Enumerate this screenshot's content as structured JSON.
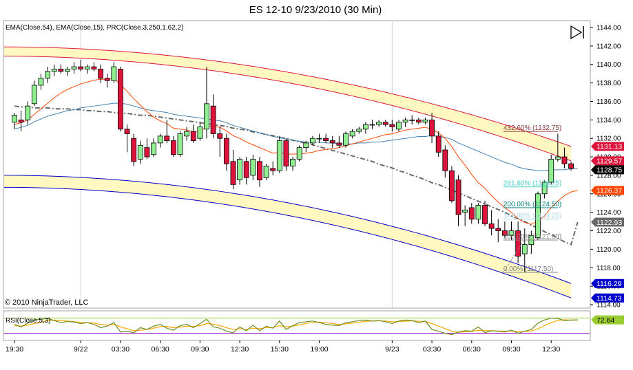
{
  "title": "ES 12-10  9/23/2010 (30 Min)",
  "indicator_label": "EMA(Close,54), EMA(Close,15), PRC(Close,3,250,1.62,2)",
  "rsi_label": "RSI(Close,5,3)",
  "copyright": "© 2010 NinjaTrader, LLC",
  "icon": "play-to-end-icon",
  "colors": {
    "up_candle": "#90ee90",
    "down_candle": "#dc143c",
    "ema54": "#4682b4",
    "ema15": "#ff4500",
    "regression": "#696969",
    "upper_channel": "#dc143c",
    "lower_channel": "#0000cd",
    "band_fill": "#fff8c0",
    "rsi": "#6b8e23",
    "rsi_signal": "#ffa500",
    "rsi_upper": "#9acd32",
    "rsi_lower": "#9400d3"
  },
  "price_axis": {
    "min": 1114,
    "max": 1144,
    "ticks": [
      "1144.00",
      "1142.00",
      "1140.00",
      "1138.00",
      "1136.00",
      "1134.00",
      "1132.00",
      "1130.00",
      "1128.00",
      "1126.00",
      "1124.00",
      "1122.00",
      "1120.00",
      "1118.00",
      "1116.00",
      "1114.00"
    ]
  },
  "price_markers": [
    {
      "label": "1131.13",
      "value": 1131.13,
      "color": "#dc143c",
      "text_color": "#ffffff"
    },
    {
      "label": "1129.57",
      "value": 1129.57,
      "color": "#dc143c",
      "text_color": "#ffffff"
    },
    {
      "label": "1128.75",
      "value": 1128.75,
      "color": "#000000",
      "text_color": "#ffffff"
    },
    {
      "label": "1126.37",
      "value": 1126.37,
      "color": "#ff4500",
      "text_color": "#ffffff"
    },
    {
      "label": "1122.93",
      "value": 1122.93,
      "color": "#696969",
      "text_color": "#ffffff"
    },
    {
      "label": "1116.29",
      "value": 1116.29,
      "color": "#0000cd",
      "text_color": "#ffffff"
    },
    {
      "label": "1114.73",
      "value": 1114.73,
      "color": "#0000cd",
      "text_color": "#ffffff"
    }
  ],
  "rsi_marker": {
    "label": "72.64",
    "value": 72.64,
    "color": "#9acd32",
    "text_color": "#000000"
  },
  "time_axis": [
    {
      "label": "19:30",
      "bar": 0
    },
    {
      "label": "9/22",
      "bar": 10
    },
    {
      "label": "03:30",
      "bar": 16
    },
    {
      "label": "06:30",
      "bar": 22
    },
    {
      "label": "09:30",
      "bar": 28
    },
    {
      "label": "12:30",
      "bar": 34
    },
    {
      "label": "15:30",
      "bar": 40
    },
    {
      "label": "19:00",
      "bar": 46
    },
    {
      "label": "9/23",
      "bar": 57
    },
    {
      "label": "03:30",
      "bar": 63
    },
    {
      "label": "06:30",
      "bar": 69
    },
    {
      "label": "09:30",
      "bar": 75
    },
    {
      "label": "12:30",
      "bar": 81
    }
  ],
  "fib_levels": [
    {
      "label": "432.60% (1132.75)",
      "value": 1132.75,
      "color": "#8b3a3a"
    },
    {
      "label": "261.80% (1126.75)",
      "value": 1126.75,
      "color": "#48d1cc"
    },
    {
      "label": "200.00% (1124.50)",
      "value": 1124.5,
      "color": "#008080"
    },
    {
      "label": "161.80% (1123.25)",
      "value": 1123.25,
      "color": "#add8e6"
    },
    {
      "label": "100.00% (1121.00)",
      "value": 1121.0,
      "color": "#808080"
    },
    {
      "label": "0.00% (1117.50)",
      "value": 1117.5,
      "color": "#808080"
    }
  ],
  "chart_data": {
    "type": "candlestick",
    "title": "ES 12-10  9/23/2010 (30 Min)",
    "ylim": [
      1114,
      1144
    ],
    "rsi_ylim": [
      0,
      100
    ],
    "rsi_levels": [
      80,
      20
    ],
    "candles": [
      {
        "o": 1133.75,
        "h": 1134.75,
        "l": 1133.0,
        "c": 1134.5
      },
      {
        "o": 1134.0,
        "h": 1135.0,
        "l": 1132.75,
        "c": 1133.75
      },
      {
        "o": 1134.0,
        "h": 1136.0,
        "l": 1133.5,
        "c": 1135.5
      },
      {
        "o": 1135.75,
        "h": 1138.25,
        "l": 1135.5,
        "c": 1137.75
      },
      {
        "o": 1137.75,
        "h": 1139.0,
        "l": 1137.25,
        "c": 1138.5
      },
      {
        "o": 1138.5,
        "h": 1139.75,
        "l": 1138.0,
        "c": 1139.25
      },
      {
        "o": 1139.25,
        "h": 1140.0,
        "l": 1138.75,
        "c": 1139.5
      },
      {
        "o": 1139.5,
        "h": 1140.0,
        "l": 1139.0,
        "c": 1139.25
      },
      {
        "o": 1139.25,
        "h": 1139.75,
        "l": 1138.75,
        "c": 1139.5
      },
      {
        "o": 1139.5,
        "h": 1140.25,
        "l": 1139.0,
        "c": 1139.75
      },
      {
        "o": 1139.75,
        "h": 1140.5,
        "l": 1139.25,
        "c": 1139.5
      },
      {
        "o": 1139.5,
        "h": 1140.0,
        "l": 1139.0,
        "c": 1139.75
      },
      {
        "o": 1139.75,
        "h": 1140.25,
        "l": 1139.25,
        "c": 1139.5
      },
      {
        "o": 1139.5,
        "h": 1140.0,
        "l": 1138.0,
        "c": 1138.5
      },
      {
        "o": 1138.5,
        "h": 1139.0,
        "l": 1137.5,
        "c": 1138.25
      },
      {
        "o": 1138.25,
        "h": 1140.25,
        "l": 1138.0,
        "c": 1139.75
      },
      {
        "o": 1139.5,
        "h": 1139.75,
        "l": 1132.75,
        "c": 1133.0
      },
      {
        "o": 1133.0,
        "h": 1133.5,
        "l": 1130.5,
        "c": 1132.5
      },
      {
        "o": 1132.0,
        "h": 1132.5,
        "l": 1129.0,
        "c": 1129.5
      },
      {
        "o": 1129.75,
        "h": 1131.75,
        "l": 1129.25,
        "c": 1131.25
      },
      {
        "o": 1131.0,
        "h": 1132.0,
        "l": 1129.75,
        "c": 1130.0
      },
      {
        "o": 1130.25,
        "h": 1132.0,
        "l": 1130.0,
        "c": 1131.5
      },
      {
        "o": 1131.5,
        "h": 1132.5,
        "l": 1131.0,
        "c": 1132.25
      },
      {
        "o": 1132.25,
        "h": 1134.0,
        "l": 1131.5,
        "c": 1131.75
      },
      {
        "o": 1131.75,
        "h": 1132.25,
        "l": 1130.0,
        "c": 1130.25
      },
      {
        "o": 1130.25,
        "h": 1132.75,
        "l": 1130.0,
        "c": 1132.5
      },
      {
        "o": 1132.25,
        "h": 1133.25,
        "l": 1131.75,
        "c": 1132.75
      },
      {
        "o": 1132.75,
        "h": 1133.5,
        "l": 1131.5,
        "c": 1131.75
      },
      {
        "o": 1132.0,
        "h": 1133.75,
        "l": 1131.75,
        "c": 1133.25
      },
      {
        "o": 1133.0,
        "h": 1139.75,
        "l": 1132.0,
        "c": 1135.75
      },
      {
        "o": 1135.5,
        "h": 1136.75,
        "l": 1132.0,
        "c": 1132.5
      },
      {
        "o": 1132.5,
        "h": 1133.25,
        "l": 1130.0,
        "c": 1132.0
      },
      {
        "o": 1132.0,
        "h": 1132.5,
        "l": 1128.5,
        "c": 1129.25
      },
      {
        "o": 1129.5,
        "h": 1130.75,
        "l": 1126.5,
        "c": 1127.0
      },
      {
        "o": 1127.5,
        "h": 1130.0,
        "l": 1127.0,
        "c": 1129.75
      },
      {
        "o": 1129.5,
        "h": 1130.0,
        "l": 1127.0,
        "c": 1127.75
      },
      {
        "o": 1128.0,
        "h": 1130.25,
        "l": 1127.5,
        "c": 1129.75
      },
      {
        "o": 1129.5,
        "h": 1130.0,
        "l": 1126.75,
        "c": 1127.5
      },
      {
        "o": 1127.75,
        "h": 1129.25,
        "l": 1127.5,
        "c": 1129.0
      },
      {
        "o": 1128.75,
        "h": 1129.5,
        "l": 1128.0,
        "c": 1128.5
      },
      {
        "o": 1128.5,
        "h": 1132.25,
        "l": 1128.25,
        "c": 1131.75
      },
      {
        "o": 1131.75,
        "h": 1132.0,
        "l": 1128.5,
        "c": 1129.0
      },
      {
        "o": 1129.0,
        "h": 1130.0,
        "l": 1128.5,
        "c": 1129.75
      },
      {
        "o": 1129.75,
        "h": 1131.25,
        "l": 1129.5,
        "c": 1131.0
      },
      {
        "o": 1131.0,
        "h": 1131.75,
        "l": 1130.5,
        "c": 1131.5
      },
      {
        "o": 1131.5,
        "h": 1132.25,
        "l": 1131.25,
        "c": 1132.0
      },
      {
        "o": 1132.0,
        "h": 1132.5,
        "l": 1131.5,
        "c": 1132.0
      },
      {
        "o": 1132.0,
        "h": 1132.5,
        "l": 1131.5,
        "c": 1131.75
      },
      {
        "o": 1131.75,
        "h": 1132.25,
        "l": 1131.0,
        "c": 1131.5
      },
      {
        "o": 1131.5,
        "h": 1132.25,
        "l": 1131.0,
        "c": 1131.25
      },
      {
        "o": 1131.25,
        "h": 1132.75,
        "l": 1131.0,
        "c": 1132.5
      },
      {
        "o": 1132.25,
        "h": 1133.0,
        "l": 1132.0,
        "c": 1132.75
      },
      {
        "o": 1132.75,
        "h": 1133.25,
        "l": 1132.5,
        "c": 1133.0
      },
      {
        "o": 1133.0,
        "h": 1133.75,
        "l": 1132.5,
        "c": 1133.5
      },
      {
        "o": 1133.5,
        "h": 1134.0,
        "l": 1133.0,
        "c": 1133.5
      },
      {
        "o": 1133.5,
        "h": 1134.0,
        "l": 1133.25,
        "c": 1133.75
      },
      {
        "o": 1133.75,
        "h": 1134.0,
        "l": 1133.25,
        "c": 1133.5
      },
      {
        "o": 1133.5,
        "h": 1134.0,
        "l": 1132.75,
        "c": 1133.25
      },
      {
        "o": 1133.0,
        "h": 1134.0,
        "l": 1132.75,
        "c": 1133.75
      },
      {
        "o": 1133.75,
        "h": 1134.25,
        "l": 1133.25,
        "c": 1134.0
      },
      {
        "o": 1134.0,
        "h": 1134.5,
        "l": 1133.5,
        "c": 1134.0
      },
      {
        "o": 1134.0,
        "h": 1134.25,
        "l": 1133.5,
        "c": 1133.75
      },
      {
        "o": 1133.75,
        "h": 1134.25,
        "l": 1133.5,
        "c": 1134.0
      },
      {
        "o": 1134.0,
        "h": 1134.75,
        "l": 1131.5,
        "c": 1132.25
      },
      {
        "o": 1132.25,
        "h": 1132.75,
        "l": 1130.0,
        "c": 1130.5
      },
      {
        "o": 1130.75,
        "h": 1131.25,
        "l": 1127.75,
        "c": 1128.5
      },
      {
        "o": 1128.5,
        "h": 1129.0,
        "l": 1125.0,
        "c": 1125.25
      },
      {
        "o": 1127.5,
        "h": 1128.0,
        "l": 1122.5,
        "c": 1123.75
      },
      {
        "o": 1124.0,
        "h": 1124.75,
        "l": 1122.5,
        "c": 1124.25
      },
      {
        "o": 1124.5,
        "h": 1125.0,
        "l": 1122.75,
        "c": 1123.25
      },
      {
        "o": 1123.25,
        "h": 1125.0,
        "l": 1122.75,
        "c": 1124.75
      },
      {
        "o": 1124.75,
        "h": 1125.25,
        "l": 1122.5,
        "c": 1122.75
      },
      {
        "o": 1122.75,
        "h": 1124.25,
        "l": 1121.5,
        "c": 1122.25
      },
      {
        "o": 1122.25,
        "h": 1123.25,
        "l": 1120.75,
        "c": 1122.0
      },
      {
        "o": 1122.0,
        "h": 1123.0,
        "l": 1121.25,
        "c": 1121.5
      },
      {
        "o": 1121.5,
        "h": 1123.0,
        "l": 1121.0,
        "c": 1122.0
      },
      {
        "o": 1122.0,
        "h": 1123.0,
        "l": 1118.5,
        "c": 1119.25
      },
      {
        "o": 1119.5,
        "h": 1122.25,
        "l": 1117.5,
        "c": 1120.5
      },
      {
        "o": 1120.5,
        "h": 1122.0,
        "l": 1119.5,
        "c": 1121.5
      },
      {
        "o": 1121.25,
        "h": 1126.25,
        "l": 1121.0,
        "c": 1126.0
      },
      {
        "o": 1126.0,
        "h": 1127.5,
        "l": 1125.5,
        "c": 1127.25
      },
      {
        "o": 1127.25,
        "h": 1130.25,
        "l": 1127.0,
        "c": 1129.75
      },
      {
        "o": 1129.75,
        "h": 1132.5,
        "l": 1129.5,
        "c": 1130.0
      },
      {
        "o": 1130.0,
        "h": 1131.0,
        "l": 1128.75,
        "c": 1129.25
      },
      {
        "o": 1129.25,
        "h": 1129.5,
        "l": 1128.5,
        "c": 1128.75
      }
    ],
    "ema54": [
      1133.0,
      1133.2,
      1133.4,
      1133.8,
      1134.1,
      1134.4,
      1134.6,
      1134.8,
      1135.0,
      1135.1,
      1135.3,
      1135.4,
      1135.5,
      1135.6,
      1135.7,
      1135.8,
      1135.8,
      1135.7,
      1135.5,
      1135.3,
      1135.1,
      1135.0,
      1134.9,
      1134.8,
      1134.6,
      1134.5,
      1134.4,
      1134.3,
      1134.2,
      1134.1,
      1134.0,
      1133.9,
      1133.7,
      1133.4,
      1133.2,
      1133.0,
      1132.8,
      1132.6,
      1132.4,
      1132.2,
      1132.1,
      1131.9,
      1131.8,
      1131.7,
      1131.6,
      1131.6,
      1131.6,
      1131.5,
      1131.5,
      1131.4,
      1131.4,
      1131.4,
      1131.5,
      1131.5,
      1131.6,
      1131.6,
      1131.7,
      1131.8,
      1131.9,
      1132.0,
      1132.1,
      1132.2,
      1132.2,
      1132.3,
      1132.2,
      1132.1,
      1131.9,
      1131.5,
      1131.2,
      1130.9,
      1130.6,
      1130.3,
      1130.0,
      1129.7,
      1129.4,
      1129.2,
      1128.9,
      1128.7,
      1128.6,
      1128.5,
      1128.5,
      1128.6,
      1128.6,
      1128.6,
      1128.7,
      1128.75
    ],
    "ema15": [
      1133.5,
      1133.7,
      1134.0,
      1134.6,
      1135.2,
      1135.8,
      1136.4,
      1136.9,
      1137.3,
      1137.6,
      1137.9,
      1138.1,
      1138.3,
      1138.4,
      1138.4,
      1138.5,
      1137.8,
      1137.1,
      1136.3,
      1135.6,
      1134.9,
      1134.3,
      1133.9,
      1133.6,
      1133.1,
      1133.0,
      1132.9,
      1132.7,
      1132.8,
      1133.2,
      1133.3,
      1133.2,
      1132.8,
      1132.3,
      1132.0,
      1131.6,
      1131.3,
      1131.0,
      1130.7,
      1130.4,
      1130.5,
      1130.3,
      1130.3,
      1130.3,
      1130.4,
      1130.5,
      1130.7,
      1130.8,
      1130.9,
      1131.0,
      1131.2,
      1131.4,
      1131.6,
      1131.8,
      1132.0,
      1132.2,
      1132.4,
      1132.5,
      1132.7,
      1132.9,
      1133.0,
      1133.1,
      1133.2,
      1133.0,
      1132.6,
      1132.0,
      1131.1,
      1130.0,
      1129.1,
      1128.1,
      1127.2,
      1126.6,
      1125.8,
      1125.1,
      1124.5,
      1124.0,
      1123.3,
      1122.9,
      1122.7,
      1123.1,
      1123.6,
      1124.5,
      1125.2,
      1125.8,
      1126.2,
      1126.37
    ],
    "regression": [
      1135.5,
      1135.4,
      1135.4,
      1135.3,
      1135.3,
      1135.3,
      1135.2,
      1135.2,
      1135.2,
      1135.1,
      1135.1,
      1135.0,
      1135.0,
      1134.9,
      1134.9,
      1134.8,
      1134.7,
      1134.7,
      1134.6,
      1134.5,
      1134.5,
      1134.4,
      1134.3,
      1134.2,
      1134.1,
      1134.0,
      1133.9,
      1133.8,
      1133.7,
      1133.6,
      1133.5,
      1133.4,
      1133.3,
      1133.1,
      1133.0,
      1132.9,
      1132.7,
      1132.6,
      1132.4,
      1132.3,
      1132.1,
      1132.0,
      1131.8,
      1131.6,
      1131.5,
      1131.3,
      1131.1,
      1130.9,
      1130.7,
      1130.5,
      1130.3,
      1130.1,
      1129.9,
      1129.7,
      1129.5,
      1129.2,
      1129.0,
      1128.8,
      1128.5,
      1128.3,
      1128.0,
      1127.8,
      1127.5,
      1127.2,
      1127.0,
      1126.7,
      1126.4,
      1126.1,
      1125.8,
      1125.5,
      1125.2,
      1124.9,
      1124.6,
      1124.3,
      1124.0,
      1123.6,
      1123.3,
      1123.0,
      1122.6,
      1122.3,
      1121.9,
      1121.6,
      1121.2,
      1120.8,
      1120.5,
      1122.93
    ],
    "upper_channel": {
      "start": [
        1141.9,
        1140.9
      ],
      "end": [
        1131.13,
        1129.57
      ]
    },
    "lower_channel": {
      "start": [
        1128.0,
        1126.7
      ],
      "end": [
        1116.29,
        1114.73
      ]
    },
    "rsi": [
      55,
      45,
      60,
      72,
      75,
      78,
      70,
      62,
      66,
      64,
      58,
      62,
      55,
      42,
      48,
      62,
      25,
      28,
      22,
      42,
      35,
      48,
      55,
      40,
      32,
      50,
      55,
      42,
      58,
      75,
      45,
      40,
      28,
      22,
      45,
      30,
      52,
      30,
      48,
      40,
      68,
      35,
      50,
      62,
      65,
      68,
      62,
      55,
      52,
      50,
      62,
      65,
      70,
      72,
      68,
      70,
      65,
      58,
      68,
      72,
      70,
      62,
      68,
      35,
      28,
      20,
      15,
      25,
      30,
      28,
      45,
      22,
      30,
      28,
      25,
      32,
      20,
      28,
      35,
      60,
      72,
      80,
      78,
      70,
      72,
      72.64
    ],
    "rsi_signal": [
      50,
      48,
      52,
      58,
      64,
      70,
      72,
      70,
      68,
      66,
      63,
      62,
      60,
      54,
      52,
      55,
      45,
      38,
      30,
      32,
      35,
      40,
      46,
      47,
      42,
      44,
      48,
      47,
      50,
      58,
      55,
      50,
      42,
      35,
      38,
      35,
      40,
      38,
      42,
      42,
      50,
      45,
      48,
      53,
      58,
      63,
      64,
      62,
      58,
      55,
      57,
      60,
      63,
      67,
      68,
      69,
      68,
      65,
      66,
      68,
      69,
      67,
      67,
      58,
      48,
      38,
      28,
      24,
      26,
      27,
      32,
      30,
      30,
      29,
      28,
      29,
      26,
      27,
      29,
      38,
      50,
      62,
      70,
      73,
      72,
      72.5
    ]
  }
}
